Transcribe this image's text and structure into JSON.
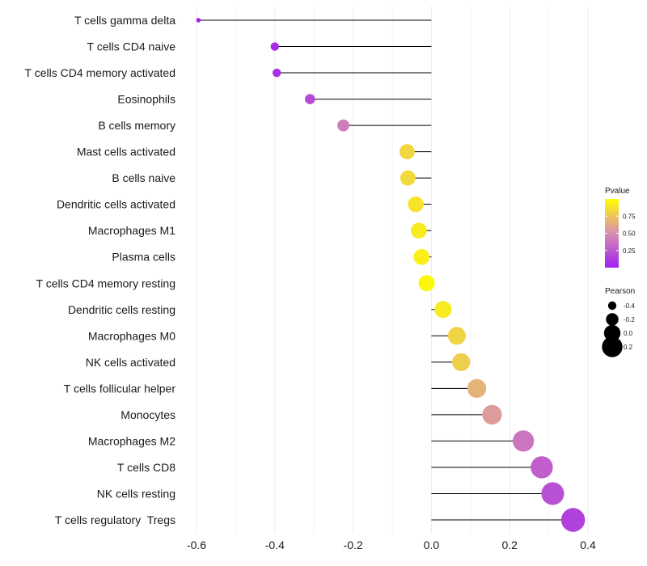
{
  "chart_data": {
    "type": "lollipop",
    "title": "",
    "xlabel": "",
    "ylabel": "",
    "xlim": [
      -0.62,
      0.4
    ],
    "x_ticks": [
      -0.6,
      -0.4,
      -0.2,
      0.0,
      0.2,
      0.4
    ],
    "x_tick_labels": [
      "-0.6",
      "-0.4",
      "-0.2",
      "0.0",
      "0.2",
      "0.4"
    ],
    "grid": true,
    "baseline": 0.0,
    "categories": [
      {
        "name": "T cells gamma delta",
        "pearson": -0.595,
        "pvalue": 0.01
      },
      {
        "name": "T cells CD4 naive",
        "pearson": -0.4,
        "pvalue": 0.05
      },
      {
        "name": "T cells CD4 memory activated",
        "pearson": -0.395,
        "pvalue": 0.08
      },
      {
        "name": "Eosinophils",
        "pearson": -0.31,
        "pvalue": 0.2
      },
      {
        "name": "B cells memory",
        "pearson": -0.225,
        "pvalue": 0.42
      },
      {
        "name": "Mast cells activated",
        "pearson": -0.062,
        "pvalue": 0.82
      },
      {
        "name": "B cells naive",
        "pearson": -0.06,
        "pvalue": 0.83
      },
      {
        "name": "Dendritic cells activated",
        "pearson": -0.04,
        "pvalue": 0.88
      },
      {
        "name": "Macrophages M1",
        "pearson": -0.032,
        "pvalue": 0.91
      },
      {
        "name": "Plasma cells",
        "pearson": -0.025,
        "pvalue": 0.93
      },
      {
        "name": "T cells CD4 memory resting",
        "pearson": -0.012,
        "pvalue": 0.97
      },
      {
        "name": "Dendritic cells resting",
        "pearson": 0.03,
        "pvalue": 0.91
      },
      {
        "name": "Macrophages M0",
        "pearson": 0.065,
        "pvalue": 0.81
      },
      {
        "name": "NK cells activated",
        "pearson": 0.076,
        "pvalue": 0.78
      },
      {
        "name": "T cells follicular helper",
        "pearson": 0.116,
        "pvalue": 0.66
      },
      {
        "name": "Monocytes",
        "pearson": 0.155,
        "pvalue": 0.56
      },
      {
        "name": "Macrophages M2",
        "pearson": 0.235,
        "pvalue": 0.38
      },
      {
        "name": "T cells CD8",
        "pearson": 0.282,
        "pvalue": 0.28
      },
      {
        "name": "NK cells resting",
        "pearson": 0.31,
        "pvalue": 0.22
      },
      {
        "name": "T cells regulatory  Tregs",
        "pearson": 0.362,
        "pvalue": 0.15
      }
    ],
    "legend_color": {
      "title": "Pvalue",
      "ticks": [
        0.25,
        0.5,
        0.75
      ],
      "tick_labels": [
        "0.25",
        "0.50",
        "0.75"
      ],
      "range": [
        0.0,
        1.0
      ],
      "color_low": "#A020F0",
      "color_mid": "#D88FB0",
      "color_high": "#FFFF00",
      "position": "right"
    },
    "legend_size": {
      "title": "Pearson",
      "values": [
        -0.4,
        -0.2,
        0.0,
        0.2
      ],
      "labels": [
        "-0.4",
        "-0.2",
        "0.0",
        "0.2"
      ],
      "position": "right"
    },
    "colors": {
      "stem": "#000000",
      "grid": "#EBEBEB",
      "background": "#FFFFFF"
    }
  }
}
